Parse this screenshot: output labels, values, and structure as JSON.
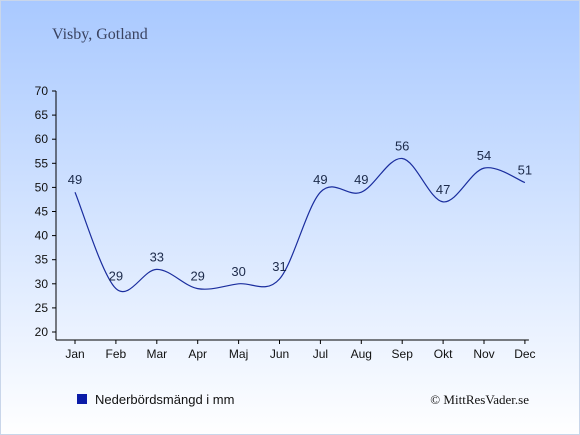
{
  "chart_data": {
    "type": "line",
    "title": "Visby, Gotland",
    "categories": [
      "Jan",
      "Feb",
      "Mar",
      "Apr",
      "Maj",
      "Jun",
      "Jul",
      "Aug",
      "Sep",
      "Okt",
      "Nov",
      "Dec"
    ],
    "series": [
      {
        "name": "Nederbördsmängd i mm",
        "values": [
          49,
          29,
          33,
          29,
          30,
          31,
          49,
          49,
          56,
          47,
          54,
          51
        ],
        "color": "#1a2d9e"
      }
    ],
    "ylim": [
      20,
      70
    ],
    "yticks": [
      20,
      25,
      30,
      35,
      40,
      45,
      50,
      55,
      60,
      65,
      70
    ],
    "grid": false,
    "legend": "bottom-left",
    "xlabel": "",
    "ylabel": ""
  },
  "credit": "© MittResVader.se",
  "colors": {
    "background_top": "#a9c9ff",
    "background_bottom": "#ffffff",
    "line": "#1a2d9e",
    "legend_marker": "#0b1ca8",
    "axis": "#000000"
  }
}
